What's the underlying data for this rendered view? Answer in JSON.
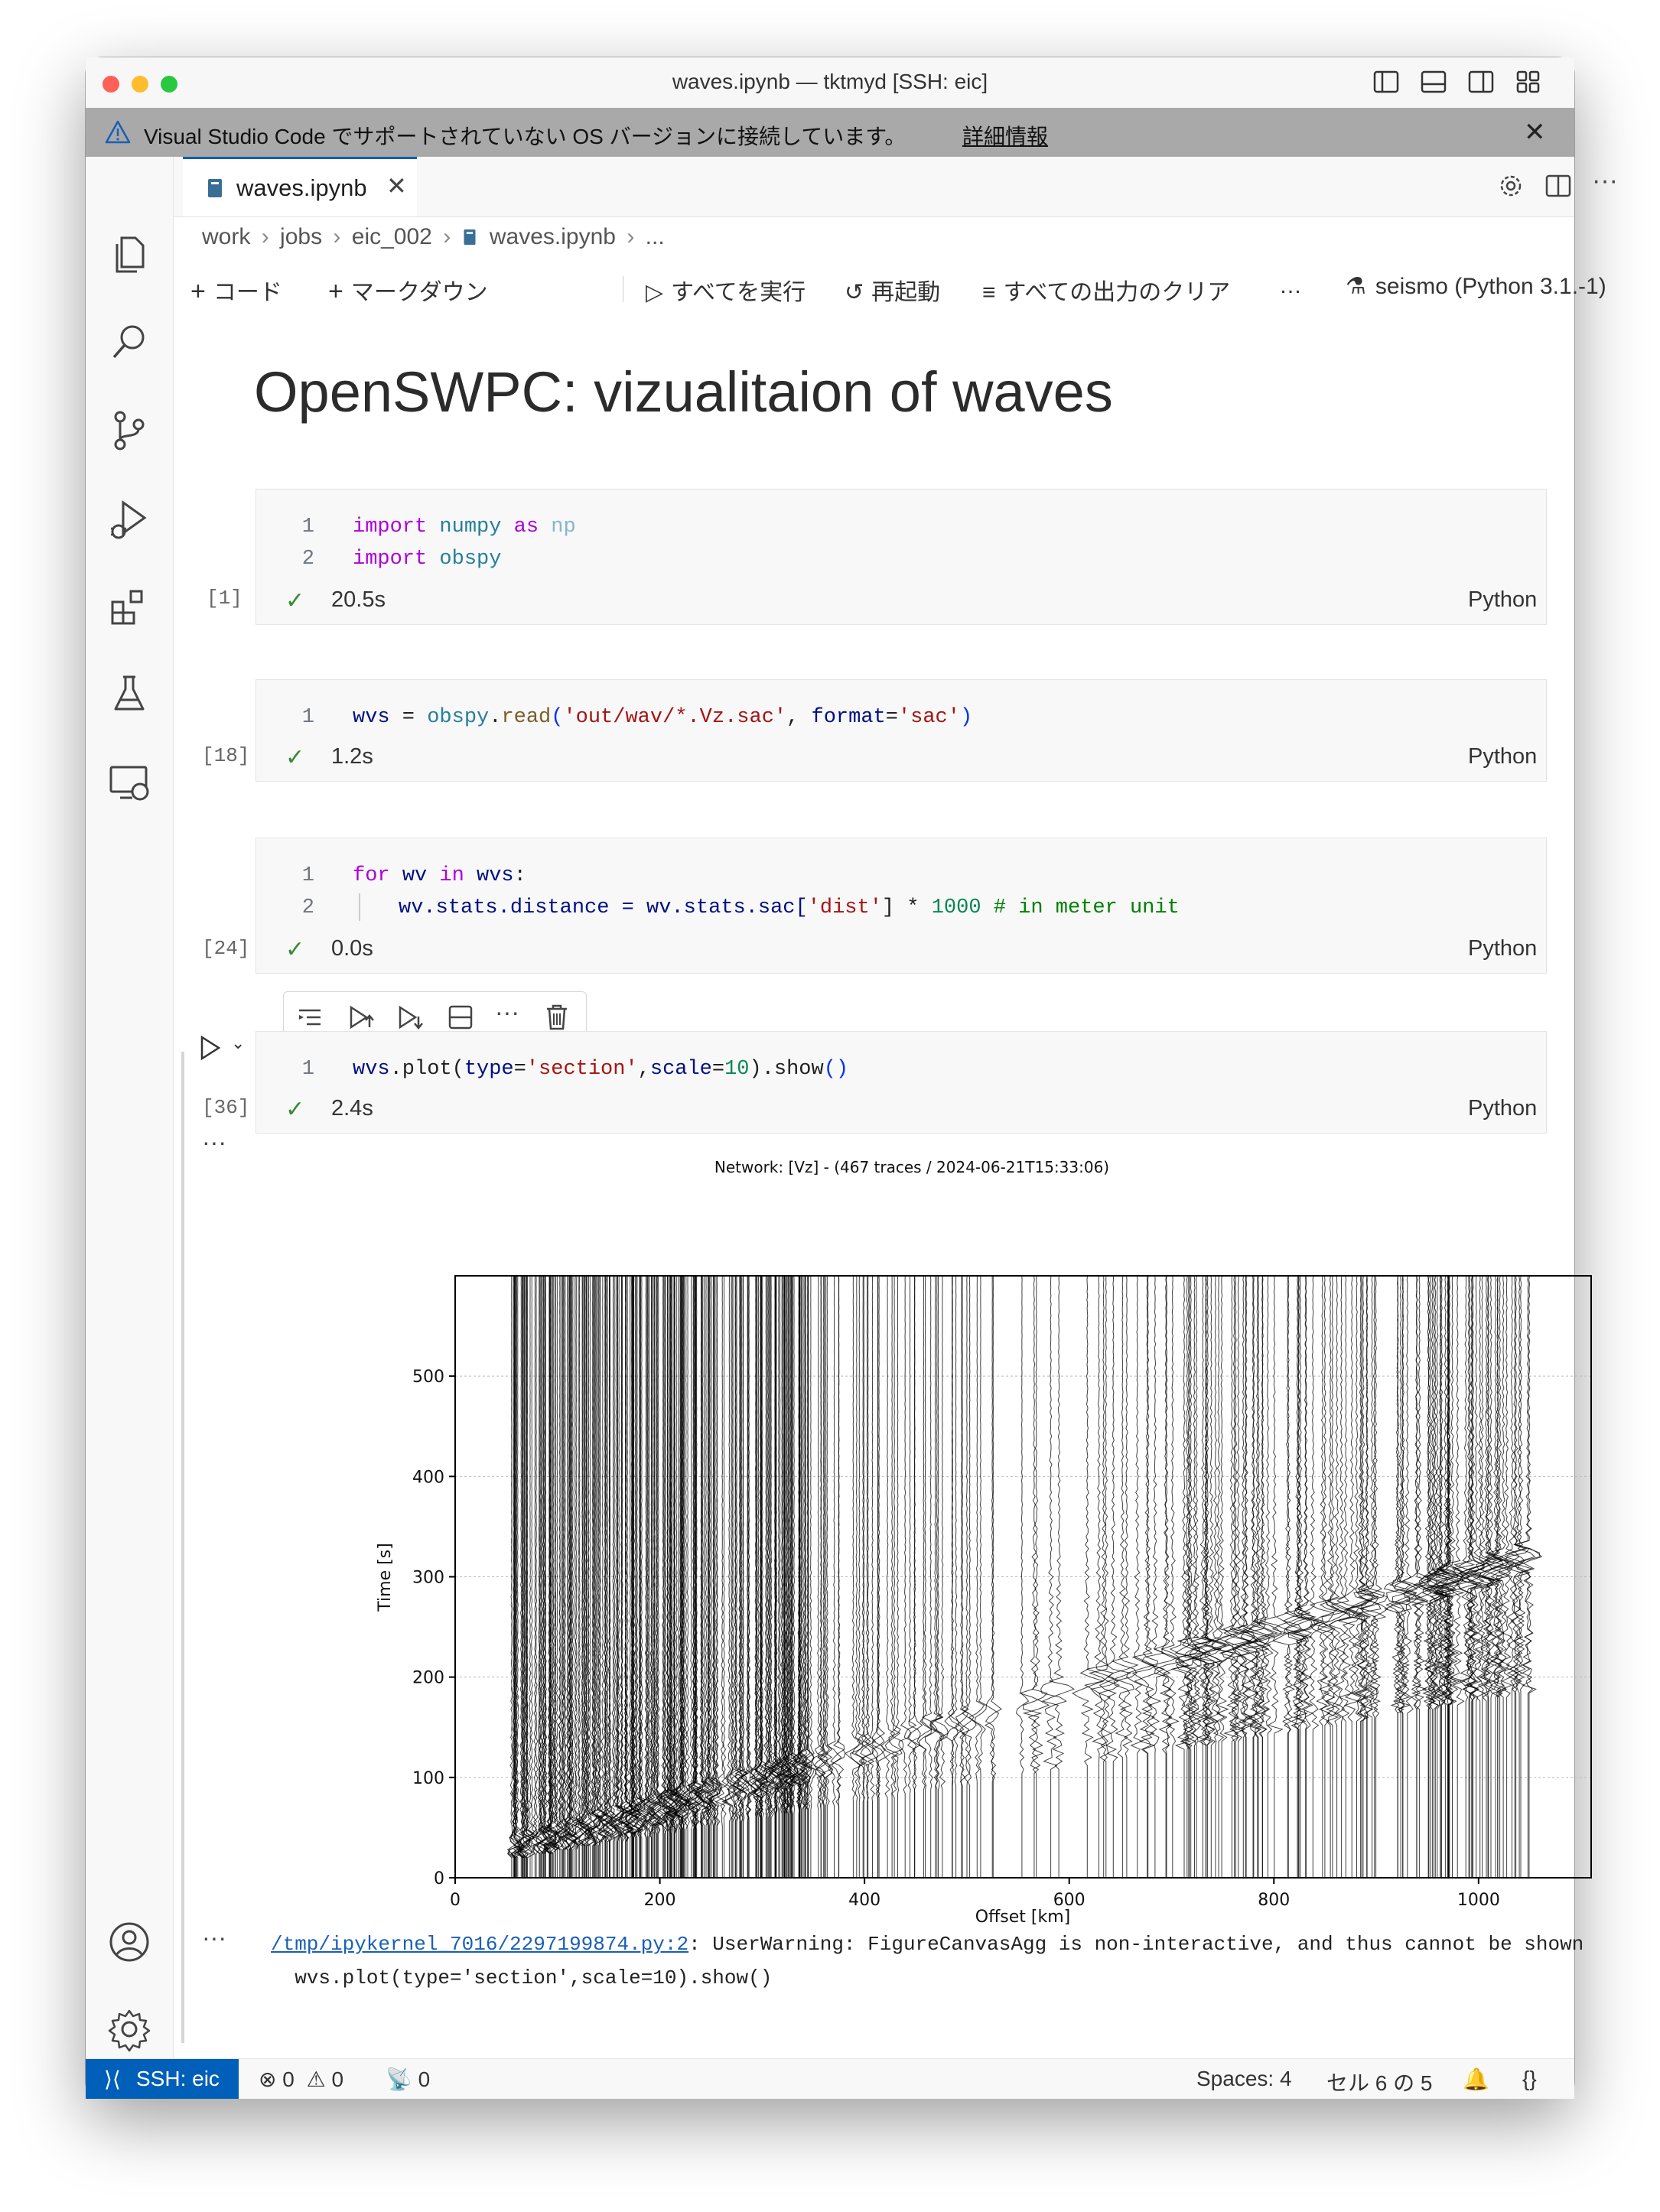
{
  "window": {
    "title": "waves.ipynb — tktmyd [SSH: eic]"
  },
  "banner": {
    "text": "Visual Studio Code でサポートされていない OS バージョンに接続しています。",
    "link": "詳細情報"
  },
  "tab": {
    "label": "waves.ipynb"
  },
  "breadcrumb": [
    "work",
    "jobs",
    "eic_002",
    "waves.ipynb",
    "..."
  ],
  "toolbar": {
    "add_code": "コード",
    "add_markdown": "マークダウン",
    "run_all": "すべてを実行",
    "restart": "再起動",
    "clear_outputs": "すべての出力のクリア",
    "more": "…",
    "kernel": "seismo (Python 3.1.-1)"
  },
  "notebook": {
    "heading": "OpenSWPC: vizualitaion of waves",
    "cells": [
      {
        "exec": "[1]",
        "time": "20.5s",
        "lang": "Python",
        "lines": [
          "1",
          "2"
        ]
      },
      {
        "exec": "[18]",
        "time": "1.2s",
        "lang": "Python",
        "lines": [
          "1"
        ]
      },
      {
        "exec": "[24]",
        "time": "0.0s",
        "lang": "Python",
        "lines": [
          "1",
          "2"
        ]
      },
      {
        "exec": "[36]",
        "time": "2.4s",
        "lang": "Python",
        "lines": [
          "1"
        ]
      }
    ],
    "cell1": {
      "l1_kw": "import",
      "l1_mod": "numpy",
      "l1_as": "as",
      "l1_alias": "np",
      "l2_kw": "import",
      "l2_mod": "obspy"
    },
    "cell2": {
      "code_a": "wvs",
      "code_b": " = ",
      "code_c": "obspy",
      "code_d": ".",
      "code_e": "read",
      "code_f": "(",
      "code_g": "'out/wav/*.Vz.sac'",
      "code_h": ", ",
      "code_i": "format",
      "code_j": "=",
      "code_k": "'sac'",
      "code_l": ")"
    },
    "cell3": {
      "l1_for": "for",
      "l1_wv": "wv",
      "l1_in": "in",
      "l1_wvs": "wvs",
      "l1_colon": ":",
      "l2_a": "wv.stats.distance = wv.stats.sac[",
      "l2_str": "'dist'",
      "l2_b": "] * ",
      "l2_num": "1000",
      "l2_cmt": " # in meter unit"
    },
    "cell4": {
      "a": "wvs",
      "b": ".plot(",
      "c": "type",
      "d": "=",
      "e": "'section'",
      "f": ",",
      "g": "scale",
      "h": "=",
      "i": "10",
      "j": ").show",
      "k": "()"
    },
    "warning_link": "/tmp/ipykernel_7016/2297199874.py:2",
    "warning_text": ": UserWarning: FigureCanvasAgg is non-interactive, and thus cannot be shown",
    "warning_line2": "  wvs.plot(type='section',scale=10).show()"
  },
  "chart_data": {
    "type": "line",
    "title": "Network:  [Vz] - (467 traces / 2024-06-21T15:33:06)",
    "xlabel": "Offset [km]",
    "ylabel": "Time [s]",
    "xlim": [
      0,
      1110
    ],
    "ylim": [
      0,
      600
    ],
    "xticks": [
      "0",
      "200",
      "400",
      "600",
      "800",
      "1000"
    ],
    "yticks": [
      "0",
      "100",
      "200",
      "300",
      "400",
      "500"
    ],
    "trace_count": 467,
    "offset_range_km": [
      55,
      1050
    ],
    "grid": "horizontal",
    "color": "#000000"
  },
  "statusbar": {
    "remote": "SSH: eic",
    "errors": "0",
    "warnings": "0",
    "ports": "0",
    "spaces": "Spaces: 4",
    "cell": "セル 6 の 5"
  },
  "colors": {
    "accent": "#005fb8",
    "banner": "#a9a9a9",
    "check": "#388a34"
  }
}
